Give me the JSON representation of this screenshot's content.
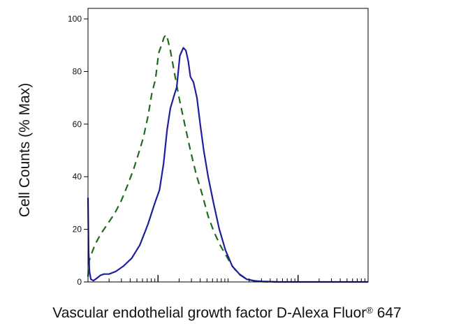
{
  "chart_data": {
    "type": "line",
    "title": "",
    "xlabel_main": "Vascular endothelial growth factor D-Alexa Fluor",
    "xlabel_reg": "®",
    "xlabel_suffix": " 647",
    "ylabel": "Cell Counts (% Max)",
    "x_scale": "log",
    "xlim": [
      0.1,
      1000
    ],
    "ylim": [
      0,
      104
    ],
    "y_ticks": [
      "0",
      "20",
      "40",
      "60",
      "80",
      "100"
    ],
    "y_tick_values": [
      0,
      20,
      40,
      60,
      80,
      100
    ],
    "x_major_ticks": [
      1,
      100
    ],
    "grid": false,
    "legend": "none",
    "colors": {
      "solid": "#1f1f9e",
      "dashed": "#1f6b1f",
      "axis": "#000000"
    },
    "series": [
      {
        "style": "dashed",
        "color": "#1f6b1f",
        "x": [
          0.1,
          0.104,
          0.11,
          0.125,
          0.15,
          0.19,
          0.24,
          0.3,
          0.37,
          0.45,
          0.53,
          0.62,
          0.72,
          0.82,
          0.92,
          1.02,
          1.12,
          1.22,
          1.3,
          1.38,
          1.5,
          1.7,
          2.0,
          2.4,
          2.9,
          3.5,
          4.3,
          5.2,
          6.3,
          7.7,
          9.4,
          11.5,
          14.2,
          17.3,
          21.2,
          26,
          32,
          40,
          50
        ],
        "y": [
          2,
          8,
          10,
          14,
          18,
          22,
          26,
          31,
          37,
          43,
          49,
          55,
          63,
          72,
          77,
          87,
          90,
          93,
          94,
          92,
          88,
          80,
          70,
          60,
          50,
          41,
          33,
          25,
          19,
          14,
          10,
          6,
          3,
          1.5,
          0.7,
          0.3,
          0.1,
          0,
          0
        ]
      },
      {
        "style": "solid",
        "color": "#1f1f9e",
        "x": [
          0.1,
          0.102,
          0.105,
          0.11,
          0.12,
          0.135,
          0.15,
          0.17,
          0.2,
          0.25,
          0.32,
          0.42,
          0.55,
          0.72,
          0.9,
          1.05,
          1.2,
          1.35,
          1.5,
          1.7,
          1.85,
          2.05,
          2.3,
          2.5,
          2.7,
          2.9,
          3.2,
          3.6,
          4.0,
          4.5,
          5.2,
          6.2,
          7.5,
          9.2,
          11.5,
          14.5,
          18.5,
          24,
          31,
          40,
          52,
          68,
          90,
          120,
          160,
          220,
          300,
          420,
          600,
          1000
        ],
        "y": [
          32,
          12,
          4,
          1,
          0.5,
          1.5,
          2.5,
          3,
          3,
          4,
          6,
          9,
          14,
          22,
          30,
          35,
          45,
          58,
          66,
          71,
          74,
          86,
          89,
          88,
          84,
          78,
          76,
          70,
          60,
          50,
          40,
          30,
          20,
          12,
          6,
          3,
          1,
          0.4,
          0.2,
          0.1,
          0,
          0,
          0,
          0,
          0,
          0,
          0,
          0,
          0,
          0
        ]
      }
    ]
  }
}
